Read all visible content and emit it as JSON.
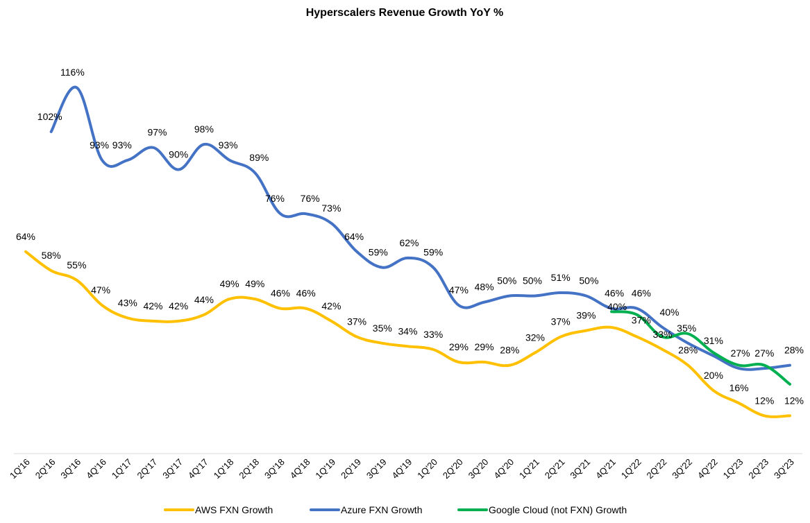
{
  "chart_data": {
    "type": "line",
    "title": "Hyperscalers Revenue Growth YoY %",
    "xlabel": "",
    "ylabel": "",
    "ylim": [
      0,
      130
    ],
    "grid": false,
    "legend_position": "bottom",
    "categories": [
      "1Q'16",
      "2Q'16",
      "3Q'16",
      "4Q'16",
      "1Q'17",
      "2Q'17",
      "3Q'17",
      "4Q'17",
      "1Q'18",
      "2Q'18",
      "3Q'18",
      "4Q'18",
      "1Q'19",
      "2Q'19",
      "3Q'19",
      "4Q'19",
      "1Q'20",
      "2Q'20",
      "3Q'20",
      "4Q'20",
      "1Q'21",
      "2Q'21",
      "3Q'21",
      "4Q'21",
      "1Q'22",
      "2Q'22",
      "3Q'22",
      "4Q'22",
      "1Q'23",
      "2Q'23",
      "3Q'23"
    ],
    "series": [
      {
        "name": "AWS FXN Growth",
        "color": "#FFC000",
        "values": [
          64,
          58,
          55,
          47,
          43,
          42,
          42,
          44,
          49,
          49,
          46,
          46,
          42,
          37,
          35,
          34,
          33,
          29,
          29,
          28,
          32,
          37,
          39,
          40,
          37,
          33,
          28,
          20,
          16,
          12,
          12
        ],
        "labels": [
          "64%",
          "58%",
          "55%",
          "47%",
          "43%",
          "42%",
          "42%",
          "44%",
          "49%",
          "49%",
          "46%",
          "46%",
          "42%",
          "37%",
          "35%",
          "34%",
          "33%",
          "29%",
          "29%",
          "28%",
          "32%",
          "37%",
          "39%",
          "40%",
          "37%",
          "33%",
          "28%",
          "20%",
          "16%",
          "12%",
          "12%"
        ]
      },
      {
        "name": "Azure FXN Growth",
        "color": "#4472C4",
        "values": [
          null,
          102,
          116,
          93,
          93,
          97,
          90,
          98,
          93,
          89,
          76,
          76,
          73,
          64,
          59,
          62,
          59,
          47,
          48,
          50,
          50,
          51,
          50,
          46,
          46,
          40,
          35,
          31,
          27,
          27,
          28
        ],
        "labels": [
          null,
          "102%",
          "116%",
          "93%",
          "93%",
          "97%",
          "90%",
          "98%",
          "93%",
          "89%",
          "76%",
          "76%",
          "73%",
          "64%",
          "59%",
          "62%",
          "59%",
          "47%",
          "48%",
          "50%",
          "50%",
          "51%",
          "50%",
          "46%",
          "46%",
          "40%",
          "35%",
          "31%",
          "27%",
          "27%",
          "28%"
        ]
      },
      {
        "name": "Google Cloud (not FXN) Growth",
        "color": "#00B050",
        "values": [
          null,
          null,
          null,
          null,
          null,
          null,
          null,
          null,
          null,
          null,
          null,
          null,
          null,
          null,
          null,
          null,
          null,
          null,
          null,
          null,
          null,
          null,
          null,
          45,
          44,
          37,
          38,
          32,
          28,
          28,
          22
        ],
        "labels": []
      }
    ]
  }
}
